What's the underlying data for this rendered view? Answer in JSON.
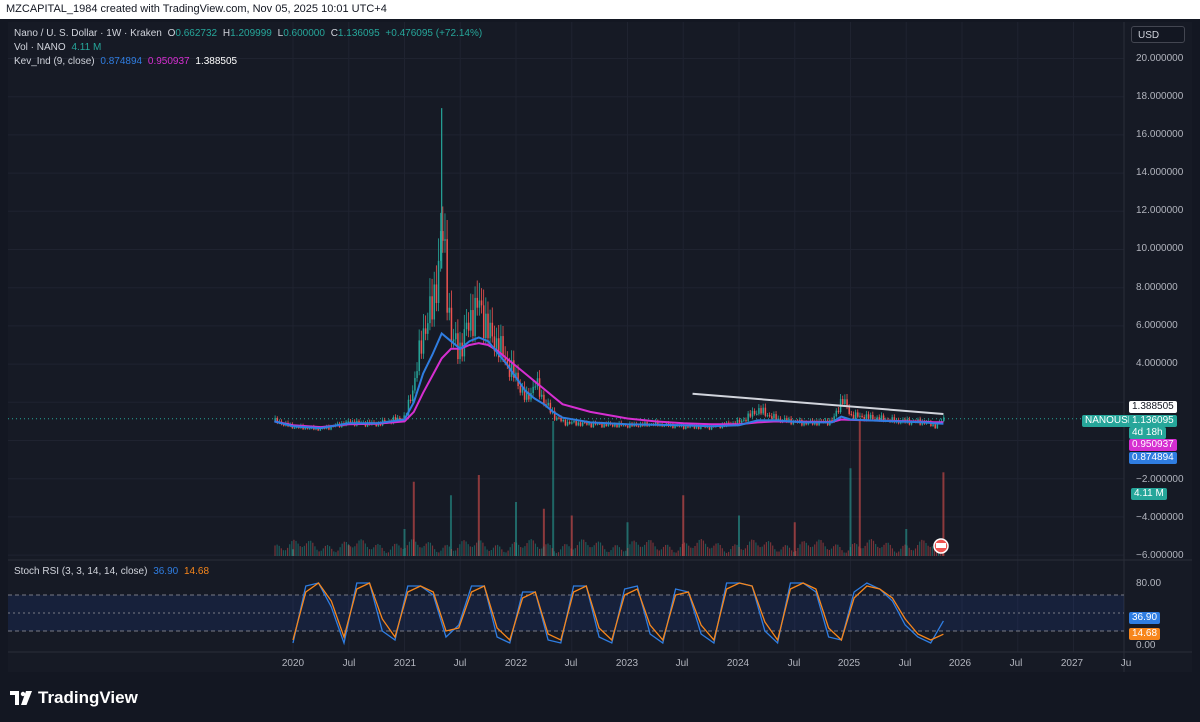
{
  "header": {
    "credit": "MZCAPITAL_1984 created with TradingView.com, Nov 05, 2025 10:01 UTC+4"
  },
  "legend": {
    "symbol": "Nano / U. S. Dollar · 1W · Kraken",
    "o_label": "O",
    "o_value": "0.662732",
    "h_label": "H",
    "h_value": "1.209999",
    "l_label": "L",
    "l_value": "0.600000",
    "c_label": "C",
    "c_value": "1.136095",
    "change": "+0.476095 (+72.14%)",
    "vol_label": "Vol · NANO",
    "vol_value": "4.11 M",
    "kev_label": "Kev_Ind (9, close)",
    "kev_v1": "0.874894",
    "kev_v2": "0.950937",
    "kev_v3": "1.388505",
    "stoch_label": "Stoch RSI (3, 3, 14, 14, close)",
    "stoch_k": "36.90",
    "stoch_d": "14.68"
  },
  "currency": "USD",
  "price_axis": [
    "20.000000",
    "18.000000",
    "16.000000",
    "14.000000",
    "12.000000",
    "10.000000",
    "8.000000",
    "6.000000",
    "4.000000",
    "−2.000000",
    "−4.000000",
    "−6.000000"
  ],
  "rsi_axis": [
    "80.00",
    "0.00"
  ],
  "time_axis": [
    "2020",
    "Jul",
    "2021",
    "Jul",
    "2022",
    "Jul",
    "2023",
    "Jul",
    "2024",
    "Jul",
    "2025",
    "Jul",
    "2026",
    "Jul",
    "2027",
    "Ju"
  ],
  "tags": {
    "line_value": "1.388505",
    "symbol_tag": "NANOUSD",
    "price": "1.136095",
    "countdown": "4d 18h",
    "kev_mag": "0.950937",
    "kev_blue": "0.874894",
    "volume": "4.11 M",
    "stoch_k": "36.90",
    "stoch_d": "14.68"
  },
  "colors": {
    "up": "#26a69a",
    "down": "#ef5350",
    "kev_fast": "#2f7de1",
    "kev_slow": "#d62ed1",
    "trendline": "#d1d4dc",
    "stoch_k": "#2f7de1",
    "stoch_d": "#f7861b"
  },
  "footer": {
    "brand": "TradingView"
  },
  "chart_data": {
    "type": "candlestick",
    "title": "Nano / U. S. Dollar · 1W · Kraken",
    "timeframe": "1W",
    "x_range": [
      "2019-12",
      "2027-08"
    ],
    "y_range": [
      -6,
      20
    ],
    "price_series": {
      "name": "NANOUSD",
      "dates": [
        "2019-11",
        "2020-01",
        "2020-04",
        "2020-07",
        "2020-10",
        "2021-01",
        "2021-02",
        "2021-03",
        "2021-04",
        "2021-05",
        "2021-06",
        "2021-07",
        "2021-08",
        "2021-09",
        "2021-10",
        "2021-11",
        "2021-12",
        "2022-01",
        "2022-02",
        "2022-03",
        "2022-04",
        "2022-05",
        "2022-06",
        "2022-09",
        "2023-01",
        "2023-04",
        "2023-07",
        "2023-10",
        "2024-01",
        "2024-03",
        "2024-05",
        "2024-08",
        "2024-11",
        "2024-12",
        "2025-01",
        "2025-03",
        "2025-06",
        "2025-09",
        "2025-10",
        "2025-11"
      ],
      "close": [
        1.0,
        0.7,
        0.6,
        0.95,
        0.85,
        1.2,
        3.1,
        5.8,
        7.0,
        11.0,
        5.2,
        4.8,
        6.4,
        7.1,
        5.6,
        5.0,
        4.0,
        3.2,
        2.1,
        3.0,
        2.0,
        1.3,
        0.95,
        0.85,
        0.78,
        0.85,
        0.72,
        0.7,
        0.95,
        1.6,
        1.1,
        0.9,
        1.0,
        2.2,
        1.3,
        1.2,
        1.0,
        0.95,
        0.75,
        1.136095
      ],
      "high_peak": 17.4
    },
    "kev_ind": {
      "name": "Kev_Ind (9, close)",
      "fast_last": 0.874894,
      "slow_last": 0.950937,
      "line_last": 1.388505,
      "fast": [
        1.0,
        0.75,
        0.65,
        0.9,
        0.9,
        1.1,
        2.0,
        3.5,
        4.5,
        5.6,
        5.2,
        4.8,
        5.2,
        5.4,
        5.2,
        4.6,
        4.0,
        3.3,
        2.6,
        2.2,
        1.9,
        1.5,
        1.2,
        0.95,
        0.85,
        0.82,
        0.8,
        0.75,
        0.8,
        1.05,
        1.05,
        0.95,
        0.95,
        1.25,
        1.1,
        1.05,
        1.0,
        0.95,
        0.9,
        0.874894
      ],
      "slow": [
        1.0,
        0.8,
        0.7,
        0.85,
        0.88,
        1.0,
        1.5,
        2.5,
        3.4,
        4.3,
        4.8,
        4.8,
        5.0,
        5.1,
        5.0,
        4.7,
        4.3,
        3.9,
        3.5,
        3.1,
        2.7,
        2.3,
        1.9,
        1.5,
        1.15,
        1.0,
        0.9,
        0.85,
        0.85,
        0.95,
        1.0,
        0.98,
        0.97,
        1.1,
        1.08,
        1.05,
        1.02,
        0.98,
        0.96,
        0.950937
      ],
      "trendline": [
        {
          "date": "2023-08",
          "value": 2.45
        },
        {
          "date": "2025-11",
          "value": 1.388505
        }
      ]
    },
    "volume": {
      "last": "4.11 M",
      "dates": [
        "2020-01",
        "2020-07",
        "2021-01",
        "2021-02",
        "2021-06",
        "2021-09",
        "2022-01",
        "2022-04",
        "2022-05",
        "2022-07",
        "2023-01",
        "2023-07",
        "2024-01",
        "2024-07",
        "2025-01",
        "2025-02",
        "2025-07",
        "2025-11"
      ],
      "relative": [
        0.05,
        0.08,
        0.2,
        0.55,
        0.45,
        0.6,
        0.4,
        0.35,
        1.0,
        0.3,
        0.25,
        0.45,
        0.3,
        0.25,
        0.65,
        1.0,
        0.2,
        0.62
      ]
    },
    "stoch_rsi": {
      "name": "Stoch RSI (3, 3, 14, 14, close)",
      "k_last": 36.9,
      "d_last": 14.68,
      "bands": [
        20,
        50,
        80
      ],
      "ylim": [
        0,
        100
      ],
      "k": [
        0,
        95,
        100,
        60,
        0,
        100,
        100,
        20,
        5,
        95,
        95,
        80,
        10,
        30,
        95,
        95,
        10,
        0,
        85,
        85,
        5,
        0,
        95,
        95,
        10,
        0,
        90,
        95,
        15,
        0,
        90,
        85,
        15,
        0,
        100,
        100,
        95,
        20,
        0,
        100,
        100,
        85,
        10,
        5,
        85,
        100,
        90,
        70,
        30,
        10,
        0,
        36.9
      ],
      "d": [
        5,
        85,
        100,
        70,
        10,
        90,
        100,
        40,
        10,
        85,
        95,
        85,
        20,
        25,
        85,
        95,
        25,
        5,
        75,
        85,
        15,
        5,
        85,
        95,
        25,
        5,
        80,
        90,
        30,
        5,
        80,
        85,
        30,
        5,
        90,
        100,
        95,
        35,
        5,
        90,
        100,
        90,
        25,
        5,
        75,
        95,
        90,
        75,
        40,
        15,
        5,
        14.68
      ]
    }
  }
}
